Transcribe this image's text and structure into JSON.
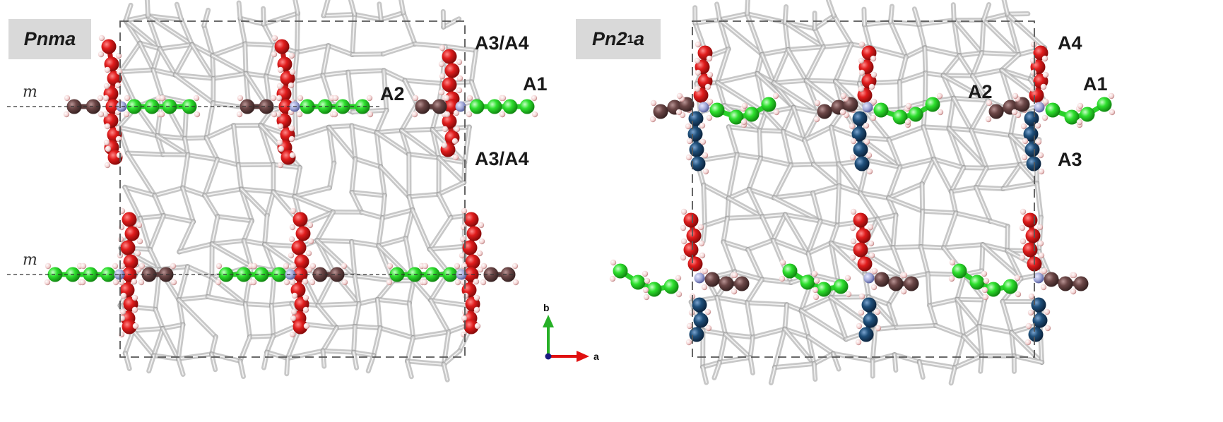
{
  "panels": [
    {
      "id": "pnma",
      "space_group": "Pnma",
      "mirror_label": "m",
      "labels": [
        "A3/A4",
        "A1",
        "A2",
        "A3/A4"
      ]
    },
    {
      "id": "pn21a",
      "space_group_prefix": "Pn2",
      "space_group_sub": "1",
      "space_group_suffix": "a",
      "labels": [
        "A4",
        "A1",
        "A2",
        "A3"
      ]
    }
  ],
  "axes": {
    "b": "b",
    "a": "a"
  },
  "colors": {
    "framework": "#c8c8c8",
    "red_atoms": "#dd1c1c",
    "green_atoms": "#2ee02e",
    "brown_atoms": "#6b4646",
    "navy_atoms": "#1f4f7a",
    "nitrogen": "#9fa6d6",
    "hydrogen": "#f2d0d0",
    "axis_b": "#27b027",
    "axis_a": "#e01010",
    "axis_origin": "#1a1a80"
  },
  "icons": [
    "framework-lattice",
    "red-atom-chain",
    "green-atom-chain",
    "brown-atom-chain",
    "navy-atom-chain"
  ]
}
